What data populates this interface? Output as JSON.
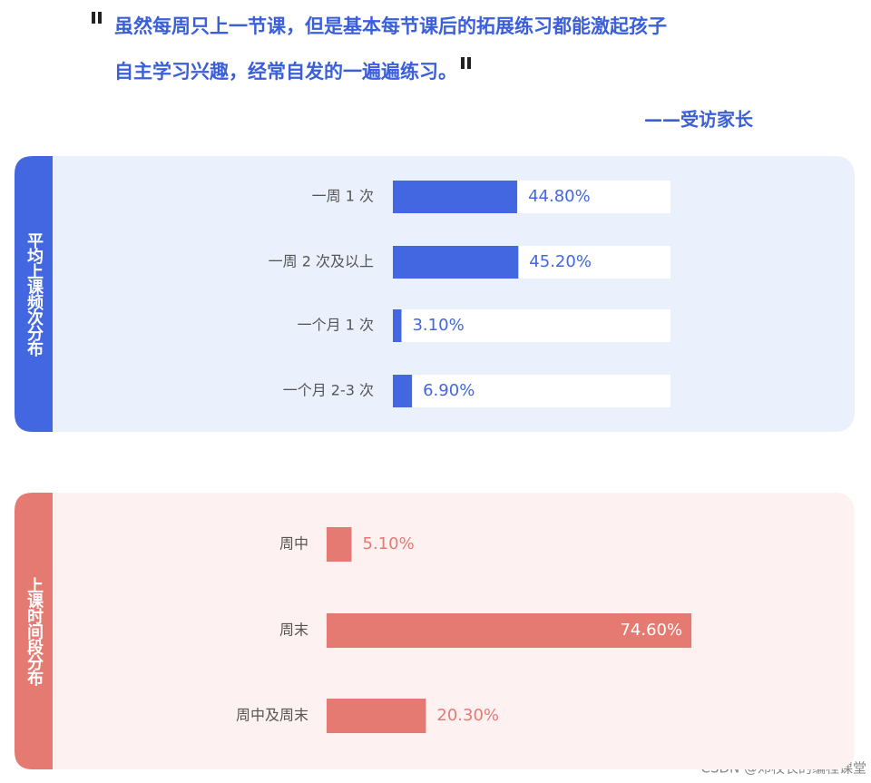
{
  "quote": [
    "虽然每周只上一节课，但是基本每节课后的拓展练习都能激起孩子",
    "自主学习兴趣，经常自发的一遍遍练习。"
  ],
  "attribution": "——受访家长",
  "watermark": "CSDN @邓校长的编程课堂",
  "chart_data": [
    {
      "type": "bar",
      "orientation": "horizontal",
      "title": "平均上课频次分布",
      "categories": [
        "一周 1 次",
        "一周 2 次及以上",
        "一个月 1 次",
        "一个月 2-3 次"
      ],
      "values": [
        44.8,
        45.2,
        3.1,
        6.9
      ],
      "value_labels": [
        "44.80%",
        "45.20%",
        "3.10%",
        "6.90%"
      ],
      "color": "#4267e0",
      "track_color": "#ffffff",
      "xlim": [
        0,
        100
      ]
    },
    {
      "type": "bar",
      "orientation": "horizontal",
      "title": "上课时间段分布",
      "categories": [
        "周中",
        "周末",
        "周中及周末"
      ],
      "values": [
        5.1,
        74.6,
        20.3
      ],
      "value_labels": [
        "5.10%",
        "74.60%",
        "20.30%"
      ],
      "color": "#e57a73",
      "xlim": [
        0,
        100
      ]
    }
  ]
}
